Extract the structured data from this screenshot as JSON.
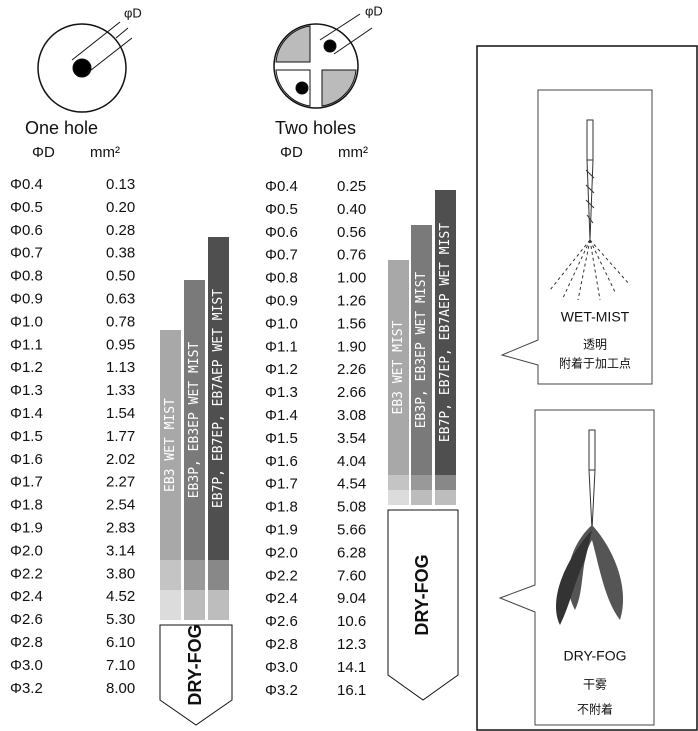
{
  "one_hole": {
    "title": "One hole",
    "diameter_label": "φD",
    "col_d": "ΦD",
    "col_area": "mm²",
    "rows": [
      [
        "Φ0.4",
        "0.13"
      ],
      [
        "Φ0.5",
        "0.20"
      ],
      [
        "Φ0.6",
        "0.28"
      ],
      [
        "Φ0.7",
        "0.38"
      ],
      [
        "Φ0.8",
        "0.50"
      ],
      [
        "Φ0.9",
        "0.63"
      ],
      [
        "Φ1.0",
        "0.78"
      ],
      [
        "Φ1.1",
        "0.95"
      ],
      [
        "Φ1.2",
        "1.13"
      ],
      [
        "Φ1.3",
        "1.33"
      ],
      [
        "Φ1.4",
        "1.54"
      ],
      [
        "Φ1.5",
        "1.77"
      ],
      [
        "Φ1.6",
        "2.02"
      ],
      [
        "Φ1.7",
        "2.27"
      ],
      [
        "Φ1.8",
        "2.54"
      ],
      [
        "Φ1.9",
        "2.83"
      ],
      [
        "Φ2.0",
        "3.14"
      ],
      [
        "Φ2.2",
        "3.80"
      ],
      [
        "Φ2.4",
        "4.52"
      ],
      [
        "Φ2.6",
        "5.30"
      ],
      [
        "Φ2.8",
        "6.10"
      ],
      [
        "Φ3.0",
        "7.10"
      ],
      [
        "Φ3.2",
        "8.00"
      ]
    ],
    "bars": [
      "EB3 WET MIST",
      "EB3P, EB3EP WET MIST",
      "EB7P, EB7EP, EB7AEP WET MIST"
    ],
    "dry_fog": "DRY-FOG"
  },
  "two_holes": {
    "title": "Two holes",
    "diameter_label": "φD",
    "col_d": "ΦD",
    "col_area": "mm²",
    "rows": [
      [
        "Φ0.4",
        "0.25"
      ],
      [
        "Φ0.5",
        "0.40"
      ],
      [
        "Φ0.6",
        "0.56"
      ],
      [
        "Φ0.7",
        "0.76"
      ],
      [
        "Φ0.8",
        "1.00"
      ],
      [
        "Φ0.9",
        "1.26"
      ],
      [
        "Φ1.0",
        "1.56"
      ],
      [
        "Φ1.1",
        "1.90"
      ],
      [
        "Φ1.2",
        "2.26"
      ],
      [
        "Φ1.3",
        "2.66"
      ],
      [
        "Φ1.4",
        "3.08"
      ],
      [
        "Φ1.5",
        "3.54"
      ],
      [
        "Φ1.6",
        "4.04"
      ],
      [
        "Φ1.7",
        "4.54"
      ],
      [
        "Φ1.8",
        "5.08"
      ],
      [
        "Φ1.9",
        "5.66"
      ],
      [
        "Φ2.0",
        "6.28"
      ],
      [
        "Φ2.2",
        "7.60"
      ],
      [
        "Φ2.4",
        "9.04"
      ],
      [
        "Φ2.6",
        "10.6"
      ],
      [
        "Φ2.8",
        "12.3"
      ],
      [
        "Φ3.0",
        "14.1"
      ],
      [
        "Φ3.2",
        "16.1"
      ]
    ],
    "bars": [
      "EB3 WET MIST",
      "EB3P, EB3EP WET MIST",
      "EB7P, EB7EP, EB7AEP WET MIST"
    ],
    "dry_fog": "DRY-FOG"
  },
  "panel": {
    "wet": {
      "title": "WET-MIST",
      "line1": "透明",
      "line2": "附着于加工点"
    },
    "dry": {
      "title": "DRY-FOG",
      "line1": "干雾",
      "line2": "不附着"
    }
  }
}
